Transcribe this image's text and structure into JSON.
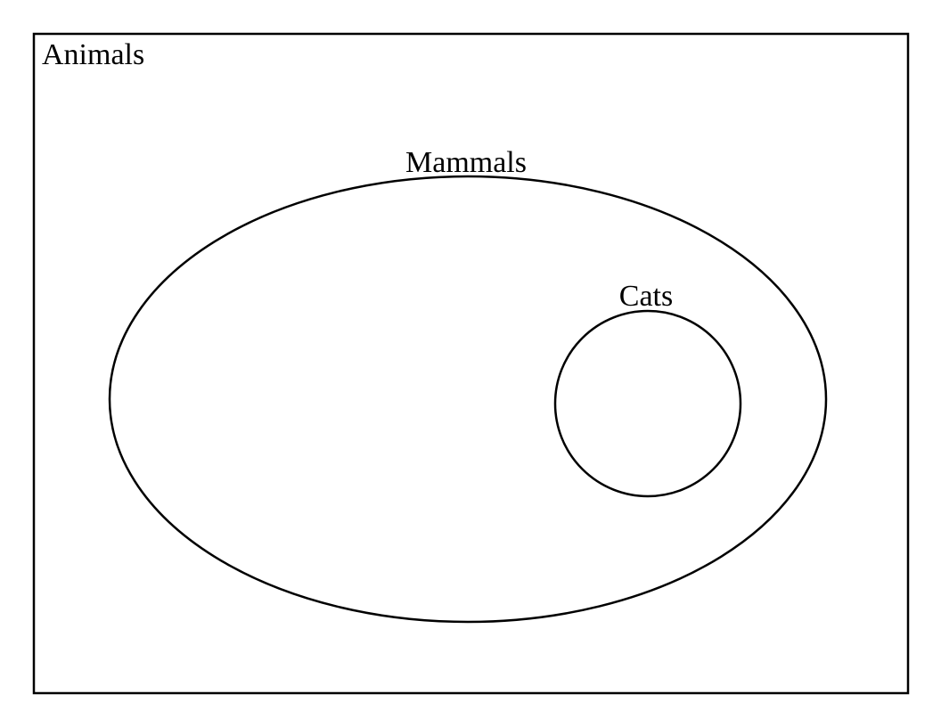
{
  "diagram": {
    "type": "venn-nested-subsets",
    "stroke_color": "#000000",
    "background_color": "#ffffff",
    "sets": {
      "universe": {
        "label": "Animals",
        "shape": "rectangle"
      },
      "mammals": {
        "label": "Mammals",
        "shape": "ellipse",
        "subset_of": "Animals"
      },
      "cats": {
        "label": "Cats",
        "shape": "circle",
        "subset_of": "Mammals"
      }
    }
  }
}
